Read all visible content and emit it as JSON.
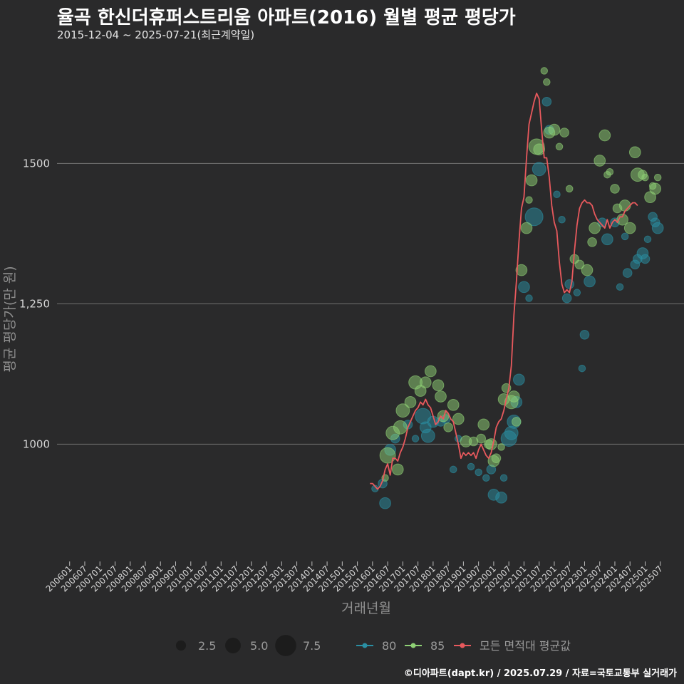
{
  "chart_data": {
    "type": "scatter",
    "title": "율곡 한신더휴퍼스트리움 아파트(2016) 월별 평균 평당가",
    "subtitle": "2015-12-04 ~ 2025-07-21(최근계약일)",
    "xlabel": "거래년월",
    "ylabel": "평균 평당가(만 원)",
    "caption": "©디아파트(dapt.kr) / 2025.07.29 / 자료=국토교통부 실거래가",
    "ylim": [
      795,
      1715
    ],
    "xlim": [
      "2005-08",
      "2026-01"
    ],
    "y_ticks": [
      1000,
      1250,
      1500
    ],
    "y_tick_labels": [
      "1000",
      "1,250",
      "1500"
    ],
    "x_ticks": [
      "200601",
      "200607",
      "200701",
      "200707",
      "200801",
      "200807",
      "200901",
      "200907",
      "201001",
      "201007",
      "201101",
      "201107",
      "201201",
      "201207",
      "201301",
      "201307",
      "201401",
      "201407",
      "201501",
      "201507",
      "201601",
      "201607",
      "201701",
      "201707",
      "201801",
      "201807",
      "201901",
      "201907",
      "202001",
      "202007",
      "202101",
      "202107",
      "202201",
      "202207",
      "202301",
      "202307",
      "202401",
      "202407",
      "202501",
      "202507"
    ],
    "grid": true,
    "legend_placement": "bottom",
    "legend": {
      "size_title": "",
      "size_entries": [
        {
          "label": "2.5",
          "size": 2.5
        },
        {
          "label": "5.0",
          "size": 5.0
        },
        {
          "label": "7.5",
          "size": 7.5
        }
      ],
      "series_entries": [
        {
          "label": "80",
          "color": "#2a8fa3"
        },
        {
          "label": "85",
          "color": "#8fd175"
        },
        {
          "label": "모든 면적대 평균값",
          "color": "#e8595d"
        }
      ]
    },
    "colors": {
      "s80": "#2a8fa3",
      "s85": "#8fd175",
      "avg": "#e8595d"
    },
    "series": [
      {
        "name": "80",
        "points": [
          [
            "2016-02",
            921,
            1
          ],
          [
            "2016-05",
            930,
            2
          ],
          [
            "2016-06",
            895,
            3
          ],
          [
            "2016-08",
            990,
            3
          ],
          [
            "2016-10",
            1010,
            2
          ],
          [
            "2017-03",
            1035,
            2
          ],
          [
            "2017-06",
            1010,
            1
          ],
          [
            "2017-09",
            1050,
            5
          ],
          [
            "2017-10",
            1030,
            3
          ],
          [
            "2017-11",
            1015,
            4
          ],
          [
            "2018-01",
            1040,
            3
          ],
          [
            "2018-04",
            1040,
            2
          ],
          [
            "2018-06",
            1045,
            2
          ],
          [
            "2018-09",
            955,
            1
          ],
          [
            "2018-11",
            1010,
            1
          ],
          [
            "2019-04",
            960,
            1
          ],
          [
            "2019-07",
            950,
            1
          ],
          [
            "2019-10",
            940,
            1
          ],
          [
            "2019-12",
            955,
            2
          ],
          [
            "2020-01",
            910,
            3
          ],
          [
            "2020-04",
            905,
            3
          ],
          [
            "2020-05",
            940,
            1
          ],
          [
            "2020-07",
            1010,
            5
          ],
          [
            "2020-08",
            1020,
            4
          ],
          [
            "2020-09",
            1040,
            4
          ],
          [
            "2020-10",
            1075,
            3
          ],
          [
            "2020-11",
            1115,
            3
          ],
          [
            "2021-01",
            1280,
            3
          ],
          [
            "2021-03",
            1260,
            1
          ],
          [
            "2021-05",
            1405,
            6
          ],
          [
            "2021-07",
            1490,
            4
          ],
          [
            "2021-10",
            1610,
            2
          ],
          [
            "2021-11",
            1560,
            2
          ],
          [
            "2022-02",
            1445,
            1
          ],
          [
            "2022-04",
            1400,
            1
          ],
          [
            "2022-06",
            1260,
            2
          ],
          [
            "2022-07",
            1285,
            2
          ],
          [
            "2022-10",
            1270,
            1
          ],
          [
            "2022-12",
            1135,
            1
          ],
          [
            "2023-01",
            1195,
            2
          ],
          [
            "2023-03",
            1290,
            3
          ],
          [
            "2023-08",
            1395,
            2
          ],
          [
            "2023-10",
            1365,
            3
          ],
          [
            "2024-01",
            1395,
            2
          ],
          [
            "2024-03",
            1280,
            1
          ],
          [
            "2024-05",
            1370,
            1
          ],
          [
            "2024-06",
            1305,
            2
          ],
          [
            "2024-09",
            1320,
            2
          ],
          [
            "2024-10",
            1330,
            2
          ],
          [
            "2024-12",
            1340,
            3
          ],
          [
            "2025-01",
            1330,
            2
          ],
          [
            "2025-02",
            1365,
            1
          ],
          [
            "2025-04",
            1405,
            2
          ],
          [
            "2025-05",
            1395,
            2
          ],
          [
            "2025-06",
            1385,
            3
          ]
        ]
      },
      {
        "name": "85",
        "points": [
          [
            "2016-06",
            940,
            1
          ],
          [
            "2016-07",
            980,
            5
          ],
          [
            "2016-09",
            1020,
            4
          ],
          [
            "2016-11",
            955,
            3
          ],
          [
            "2016-12",
            1030,
            4
          ],
          [
            "2017-01",
            1060,
            4
          ],
          [
            "2017-04",
            1075,
            3
          ],
          [
            "2017-06",
            1110,
            4
          ],
          [
            "2017-08",
            1095,
            3
          ],
          [
            "2017-10",
            1110,
            3
          ],
          [
            "2017-12",
            1130,
            3
          ],
          [
            "2018-03",
            1105,
            3
          ],
          [
            "2018-04",
            1085,
            3
          ],
          [
            "2018-05",
            1050,
            3
          ],
          [
            "2018-07",
            1030,
            2
          ],
          [
            "2018-09",
            1070,
            3
          ],
          [
            "2018-11",
            1045,
            3
          ],
          [
            "2019-02",
            1005,
            3
          ],
          [
            "2019-05",
            1005,
            2
          ],
          [
            "2019-08",
            1010,
            2
          ],
          [
            "2019-09",
            1035,
            3
          ],
          [
            "2019-11",
            1000,
            2
          ],
          [
            "2019-12",
            1000,
            3
          ],
          [
            "2020-01",
            970,
            3
          ],
          [
            "2020-02",
            975,
            2
          ],
          [
            "2020-04",
            995,
            1
          ],
          [
            "2020-05",
            1080,
            3
          ],
          [
            "2020-06",
            1100,
            2
          ],
          [
            "2020-08",
            1075,
            4
          ],
          [
            "2020-09",
            1085,
            3
          ],
          [
            "2020-10",
            1040,
            2
          ],
          [
            "2020-12",
            1310,
            3
          ],
          [
            "2021-02",
            1385,
            3
          ],
          [
            "2021-03",
            1435,
            1
          ],
          [
            "2021-04",
            1470,
            3
          ],
          [
            "2021-06",
            1530,
            5
          ],
          [
            "2021-07",
            1525,
            3
          ],
          [
            "2021-09",
            1665,
            1
          ],
          [
            "2021-10",
            1645,
            1
          ],
          [
            "2021-11",
            1555,
            3
          ],
          [
            "2022-01",
            1560,
            3
          ],
          [
            "2022-03",
            1530,
            1
          ],
          [
            "2022-05",
            1555,
            2
          ],
          [
            "2022-07",
            1455,
            1
          ],
          [
            "2022-09",
            1330,
            2
          ],
          [
            "2022-11",
            1320,
            2
          ],
          [
            "2023-02",
            1310,
            3
          ],
          [
            "2023-04",
            1360,
            2
          ],
          [
            "2023-05",
            1385,
            3
          ],
          [
            "2023-07",
            1505,
            3
          ],
          [
            "2023-09",
            1550,
            3
          ],
          [
            "2023-10",
            1480,
            1
          ],
          [
            "2023-11",
            1485,
            1
          ],
          [
            "2024-01",
            1455,
            2
          ],
          [
            "2024-02",
            1420,
            2
          ],
          [
            "2024-04",
            1400,
            3
          ],
          [
            "2024-05",
            1425,
            3
          ],
          [
            "2024-07",
            1385,
            3
          ],
          [
            "2024-09",
            1520,
            3
          ],
          [
            "2024-10",
            1480,
            4
          ],
          [
            "2024-12",
            1480,
            2
          ],
          [
            "2025-01",
            1475,
            1
          ],
          [
            "2025-03",
            1440,
            3
          ],
          [
            "2025-04",
            1460,
            1
          ],
          [
            "2025-05",
            1455,
            3
          ],
          [
            "2025-06",
            1475,
            1
          ]
        ]
      },
      {
        "name": "모든 면적대 평균값",
        "points": [
          [
            "2015-12",
            930
          ],
          [
            "2016-01",
            930
          ],
          [
            "2016-02",
            925
          ],
          [
            "2016-03",
            920
          ],
          [
            "2016-04",
            925
          ],
          [
            "2016-05",
            935
          ],
          [
            "2016-06",
            955
          ],
          [
            "2016-07",
            965
          ],
          [
            "2016-08",
            945
          ],
          [
            "2016-09",
            975
          ],
          [
            "2016-10",
            975
          ],
          [
            "2016-11",
            970
          ],
          [
            "2016-12",
            985
          ],
          [
            "2017-01",
            995
          ],
          [
            "2017-02",
            1010
          ],
          [
            "2017-03",
            1030
          ],
          [
            "2017-04",
            1040
          ],
          [
            "2017-05",
            1050
          ],
          [
            "2017-06",
            1060
          ],
          [
            "2017-07",
            1065
          ],
          [
            "2017-08",
            1075
          ],
          [
            "2017-09",
            1070
          ],
          [
            "2017-10",
            1080
          ],
          [
            "2017-11",
            1070
          ],
          [
            "2017-12",
            1065
          ],
          [
            "2018-01",
            1050
          ],
          [
            "2018-02",
            1035
          ],
          [
            "2018-03",
            1040
          ],
          [
            "2018-04",
            1050
          ],
          [
            "2018-05",
            1045
          ],
          [
            "2018-06",
            1060
          ],
          [
            "2018-07",
            1055
          ],
          [
            "2018-08",
            1045
          ],
          [
            "2018-09",
            1040
          ],
          [
            "2018-10",
            1020
          ],
          [
            "2018-11",
            1000
          ],
          [
            "2018-12",
            975
          ],
          [
            "2019-01",
            985
          ],
          [
            "2019-02",
            980
          ],
          [
            "2019-03",
            985
          ],
          [
            "2019-04",
            980
          ],
          [
            "2019-05",
            985
          ],
          [
            "2019-06",
            975
          ],
          [
            "2019-07",
            990
          ],
          [
            "2019-08",
            1000
          ],
          [
            "2019-09",
            990
          ],
          [
            "2019-10",
            980
          ],
          [
            "2019-11",
            975
          ],
          [
            "2019-12",
            985
          ],
          [
            "2020-01",
            1005
          ],
          [
            "2020-02",
            1030
          ],
          [
            "2020-03",
            1040
          ],
          [
            "2020-04",
            1045
          ],
          [
            "2020-05",
            1060
          ],
          [
            "2020-06",
            1080
          ],
          [
            "2020-07",
            1100
          ],
          [
            "2020-08",
            1140
          ],
          [
            "2020-09",
            1230
          ],
          [
            "2020-10",
            1290
          ],
          [
            "2020-11",
            1360
          ],
          [
            "2020-12",
            1420
          ],
          [
            "2021-01",
            1440
          ],
          [
            "2021-02",
            1510
          ],
          [
            "2021-03",
            1570
          ],
          [
            "2021-04",
            1590
          ],
          [
            "2021-05",
            1610
          ],
          [
            "2021-06",
            1625
          ],
          [
            "2021-07",
            1615
          ],
          [
            "2021-08",
            1560
          ],
          [
            "2021-09",
            1510
          ],
          [
            "2021-10",
            1510
          ],
          [
            "2021-11",
            1475
          ],
          [
            "2021-12",
            1425
          ],
          [
            "2022-01",
            1395
          ],
          [
            "2022-02",
            1380
          ],
          [
            "2022-03",
            1325
          ],
          [
            "2022-04",
            1285
          ],
          [
            "2022-05",
            1270
          ],
          [
            "2022-06",
            1275
          ],
          [
            "2022-07",
            1270
          ],
          [
            "2022-08",
            1290
          ],
          [
            "2022-09",
            1345
          ],
          [
            "2022-10",
            1390
          ],
          [
            "2022-11",
            1420
          ],
          [
            "2022-12",
            1430
          ],
          [
            "2023-01",
            1435
          ],
          [
            "2023-02",
            1430
          ],
          [
            "2023-03",
            1430
          ],
          [
            "2023-04",
            1425
          ],
          [
            "2023-05",
            1410
          ],
          [
            "2023-06",
            1400
          ],
          [
            "2023-07",
            1395
          ],
          [
            "2023-08",
            1390
          ],
          [
            "2023-09",
            1385
          ],
          [
            "2023-10",
            1400
          ],
          [
            "2023-11",
            1385
          ],
          [
            "2023-12",
            1395
          ],
          [
            "2024-01",
            1400
          ],
          [
            "2024-02",
            1395
          ],
          [
            "2024-03",
            1405
          ],
          [
            "2024-04",
            1405
          ],
          [
            "2024-05",
            1415
          ],
          [
            "2024-06",
            1420
          ],
          [
            "2024-07",
            1425
          ],
          [
            "2024-08",
            1430
          ],
          [
            "2024-09",
            1430
          ],
          [
            "2024-10",
            1425
          ]
        ]
      }
    ]
  }
}
